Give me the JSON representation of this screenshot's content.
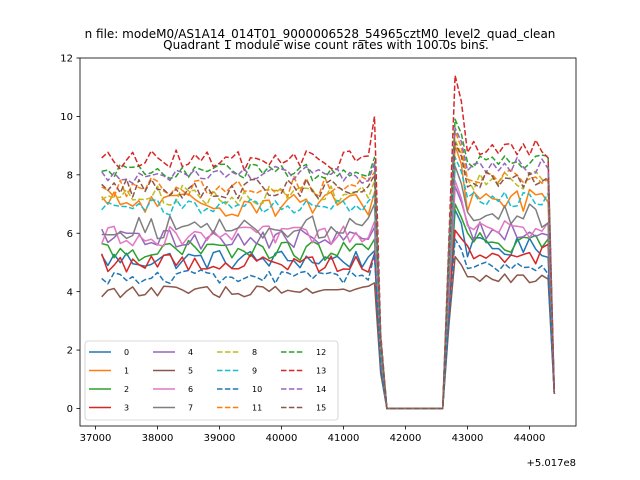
{
  "chart_data": {
    "type": "line",
    "suptitle": "n file: modeM0/AS1A14_014T01_9000006528_54965cztM0_level2_quad_clean",
    "title": "Quadrant 1 module wise count rates with 100.0s bins.",
    "xlabel": "",
    "ylabel": "",
    "x_offset_label": "+5.017e8",
    "xlim": [
      36750,
      44750
    ],
    "ylim": [
      -0.6,
      12
    ],
    "x_ticks": [
      37000,
      38000,
      39000,
      40000,
      41000,
      42000,
      43000,
      44000
    ],
    "x_tick_labels": [
      "37000",
      "38000",
      "39000",
      "40000",
      "41000",
      "42000",
      "43000",
      "44000"
    ],
    "y_ticks": [
      0,
      2,
      4,
      6,
      8,
      10,
      12
    ],
    "y_tick_labels": [
      "0",
      "2",
      "4",
      "6",
      "8",
      "10",
      "12"
    ],
    "grid": false,
    "legend": {
      "placement": "lower-left",
      "columns": 4
    },
    "x_ranges": [
      {
        "start": 37100,
        "end": 41500,
        "step": 100
      },
      {
        "start": 42700,
        "end": 44400,
        "step": 100
      }
    ],
    "gap": {
      "x": [
        41600,
        41700,
        42600
      ],
      "y_end": 0
    },
    "series": [
      {
        "name": "0",
        "color": "#1f77b4",
        "dash": "solid",
        "level1": 5.1,
        "jump1": 5.4,
        "level2": 5.5,
        "peak": 6.8,
        "amp": 0.35
      },
      {
        "name": "1",
        "color": "#ff7f0e",
        "dash": "solid",
        "level1": 7.0,
        "jump1": 7.4,
        "level2": 7.2,
        "peak": 9.0,
        "amp": 0.45
      },
      {
        "name": "2",
        "color": "#2ca02c",
        "dash": "solid",
        "level1": 5.4,
        "jump1": 5.8,
        "level2": 5.7,
        "peak": 7.0,
        "amp": 0.35
      },
      {
        "name": "3",
        "color": "#d62728",
        "dash": "solid",
        "level1": 5.0,
        "jump1": 5.3,
        "level2": 5.3,
        "peak": 6.1,
        "amp": 0.35
      },
      {
        "name": "4",
        "color": "#9467bd",
        "dash": "solid",
        "level1": 5.8,
        "jump1": 6.2,
        "level2": 6.1,
        "peak": 7.6,
        "amp": 0.35
      },
      {
        "name": "5",
        "color": "#8c564b",
        "dash": "solid",
        "level1": 4.0,
        "jump1": 4.3,
        "level2": 4.4,
        "peak": 5.2,
        "amp": 0.2
      },
      {
        "name": "6",
        "color": "#e377c2",
        "dash": "solid",
        "level1": 5.9,
        "jump1": 6.4,
        "level2": 6.1,
        "peak": 7.8,
        "amp": 0.35
      },
      {
        "name": "7",
        "color": "#7f7f7f",
        "dash": "solid",
        "level1": 6.2,
        "jump1": 7.0,
        "level2": 6.6,
        "peak": 8.3,
        "amp": 0.4
      },
      {
        "name": "8",
        "color": "#bcbd22",
        "dash": "dashed",
        "level1": 7.3,
        "jump1": 7.8,
        "level2": 7.8,
        "peak": 9.2,
        "amp": 0.35
      },
      {
        "name": "9",
        "color": "#17becf",
        "dash": "dashed",
        "level1": 6.9,
        "jump1": 7.3,
        "level2": 7.2,
        "peak": 8.6,
        "amp": 0.3
      },
      {
        "name": "10",
        "color": "#1f77b4",
        "dash": "dashed",
        "level1": 4.5,
        "jump1": 5.3,
        "level2": 4.8,
        "peak": 5.8,
        "amp": 0.25
      },
      {
        "name": "11",
        "color": "#ff7f0e",
        "dash": "dashed",
        "level1": 7.6,
        "jump1": 8.1,
        "level2": 7.9,
        "peak": 9.5,
        "amp": 0.35
      },
      {
        "name": "12",
        "color": "#2ca02c",
        "dash": "dashed",
        "level1": 8.1,
        "jump1": 8.6,
        "level2": 8.5,
        "peak": 9.9,
        "amp": 0.3
      },
      {
        "name": "13",
        "color": "#d62728",
        "dash": "dashed",
        "level1": 8.5,
        "jump1": 10.0,
        "level2": 8.9,
        "peak": 11.4,
        "amp": 0.35
      },
      {
        "name": "14",
        "color": "#9467bd",
        "dash": "dashed",
        "level1": 8.0,
        "jump1": 8.4,
        "level2": 8.3,
        "peak": 9.6,
        "amp": 0.3
      },
      {
        "name": "15",
        "color": "#8c564b",
        "dash": "dashed",
        "level1": 7.5,
        "jump1": 8.0,
        "level2": 7.8,
        "peak": 9.1,
        "amp": 0.35
      }
    ]
  }
}
